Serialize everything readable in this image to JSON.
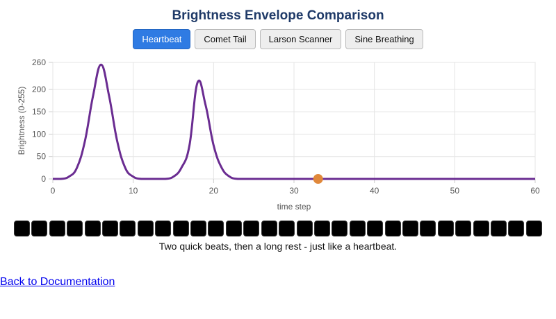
{
  "title": "Brightness Envelope Comparison",
  "buttons": [
    {
      "label": "Heartbeat",
      "active": true
    },
    {
      "label": "Comet Tail",
      "active": false
    },
    {
      "label": "Larson Scanner",
      "active": false
    },
    {
      "label": "Sine Breathing",
      "active": false
    }
  ],
  "chart_data": {
    "type": "line",
    "xlabel": "time step",
    "ylabel": "Brightness (0-255)",
    "xlim": [
      0,
      60
    ],
    "ylim": [
      0,
      260
    ],
    "xticks": [
      0,
      10,
      20,
      30,
      40,
      50,
      60
    ],
    "yticks": [
      0,
      50,
      100,
      150,
      200,
      260
    ],
    "grid": true,
    "line_color": "#6a2c91",
    "marker": {
      "x": 33,
      "y": 0,
      "color": "#e0883a"
    },
    "series": [
      {
        "x": [
          0,
          1,
          2,
          3,
          4,
          5,
          6,
          7,
          8,
          9,
          10,
          11,
          12,
          13,
          14,
          15,
          16,
          17,
          18,
          19,
          20,
          21,
          22,
          23,
          24,
          25,
          26,
          27,
          28,
          29,
          30,
          31,
          32,
          33,
          34,
          35,
          36,
          37,
          38,
          39,
          40,
          41,
          42,
          43,
          44,
          45,
          46,
          47,
          48,
          49,
          50,
          51,
          52,
          53,
          54,
          55,
          56,
          57,
          58,
          59,
          60
        ],
        "values": [
          0,
          0,
          5,
          25,
          85,
          185,
          255,
          185,
          85,
          25,
          5,
          0,
          0,
          0,
          0,
          5,
          25,
          75,
          215,
          165,
          75,
          25,
          5,
          0,
          0,
          0,
          0,
          0,
          0,
          0,
          0,
          0,
          0,
          0,
          0,
          0,
          0,
          0,
          0,
          0,
          0,
          0,
          0,
          0,
          0,
          0,
          0,
          0,
          0,
          0,
          0,
          0,
          0,
          0,
          0,
          0,
          0,
          0,
          0,
          0,
          0
        ]
      }
    ]
  },
  "led_count": 30,
  "caption": "Two quick beats, then a long rest - just like a heartbeat.",
  "back_link": "Back to Documentation"
}
